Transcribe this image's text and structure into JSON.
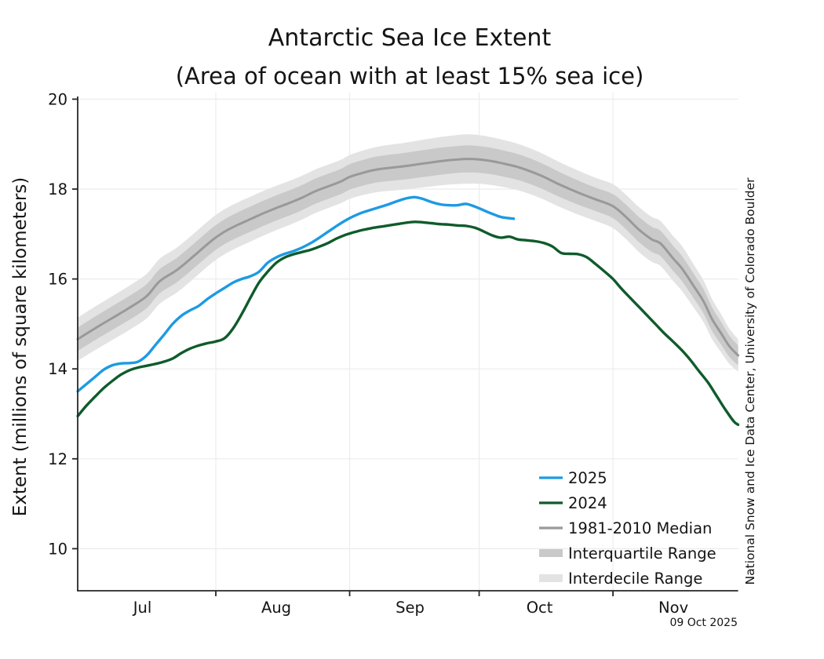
{
  "header": {
    "title": "Antarctic Sea Ice Extent",
    "subtitle": "(Area of ocean with at least 15% sea ice)"
  },
  "axes": {
    "y_label": "Extent (millions of square kilometers)",
    "y_ticks": [
      "20",
      "18",
      "16",
      "14",
      "12",
      "10"
    ],
    "month_labels": [
      "Jul",
      "Aug",
      "Sep",
      "Oct",
      "Nov"
    ]
  },
  "annotations": {
    "credit": "National Snow and Ice Data Center, University of Colorado Boulder",
    "date_stamp": "09 Oct 2025"
  },
  "legend": {
    "items": [
      {
        "label": "2025",
        "kind": "line",
        "color": "#1D9AE3"
      },
      {
        "label": "2024",
        "kind": "line",
        "color": "#0F5B2B"
      },
      {
        "label": "1981-2010 Median",
        "kind": "line",
        "color": "#999999"
      },
      {
        "label": "Interquartile Range",
        "kind": "band",
        "color": "#C9C9C9"
      },
      {
        "label": "Interdecile Range",
        "kind": "band",
        "color": "#E3E3E3"
      }
    ]
  },
  "colors": {
    "line_2025": "#1D9AE3",
    "line_2024": "#0F5B2B",
    "median": "#999999",
    "interquartile": "#C9C9C9",
    "interdecile": "#E3E3E3",
    "gridline": "#ECECEC",
    "axis": "#262626"
  },
  "chart_data": {
    "type": "line",
    "title": "Antarctic Sea Ice Extent",
    "subtitle": "(Area of ocean with at least 15% sea ice)",
    "xlabel": "",
    "ylabel": "Extent (millions of square kilometers)",
    "x_unit": "days since Jun 30",
    "ylim": [
      9.0,
      20.1
    ],
    "xlim_days": [
      0,
      153
    ],
    "y_tick_values": [
      20,
      18,
      16,
      14,
      12,
      10
    ],
    "month_boundary_days": [
      32,
      63,
      93,
      124
    ],
    "month_label_days": [
      15,
      46,
      77,
      107,
      138
    ],
    "legend_position": "lower right inside plot",
    "grid": true,
    "series": [
      {
        "name": "2025",
        "points": [
          [
            0,
            13.5
          ],
          [
            2,
            13.66
          ],
          [
            4,
            13.82
          ],
          [
            6,
            13.98
          ],
          [
            8,
            14.08
          ],
          [
            10,
            14.12
          ],
          [
            12,
            14.13
          ],
          [
            14,
            14.16
          ],
          [
            16,
            14.3
          ],
          [
            18,
            14.53
          ],
          [
            20,
            14.76
          ],
          [
            22,
            15.0
          ],
          [
            24,
            15.18
          ],
          [
            26,
            15.3
          ],
          [
            28,
            15.4
          ],
          [
            30,
            15.55
          ],
          [
            32,
            15.68
          ],
          [
            34,
            15.8
          ],
          [
            36,
            15.92
          ],
          [
            38,
            16.0
          ],
          [
            40,
            16.06
          ],
          [
            42,
            16.16
          ],
          [
            44,
            16.36
          ],
          [
            46,
            16.48
          ],
          [
            48,
            16.56
          ],
          [
            50,
            16.62
          ],
          [
            52,
            16.7
          ],
          [
            54,
            16.8
          ],
          [
            56,
            16.92
          ],
          [
            58,
            17.05
          ],
          [
            60,
            17.18
          ],
          [
            62,
            17.3
          ],
          [
            64,
            17.4
          ],
          [
            66,
            17.48
          ],
          [
            68,
            17.54
          ],
          [
            70,
            17.6
          ],
          [
            72,
            17.66
          ],
          [
            74,
            17.73
          ],
          [
            76,
            17.79
          ],
          [
            78,
            17.82
          ],
          [
            80,
            17.78
          ],
          [
            82,
            17.71
          ],
          [
            84,
            17.66
          ],
          [
            86,
            17.64
          ],
          [
            88,
            17.64
          ],
          [
            90,
            17.67
          ],
          [
            92,
            17.61
          ],
          [
            94,
            17.53
          ],
          [
            96,
            17.45
          ],
          [
            98,
            17.38
          ],
          [
            100,
            17.35
          ],
          [
            101,
            17.34
          ]
        ]
      },
      {
        "name": "2024",
        "points": [
          [
            0,
            12.95
          ],
          [
            2,
            13.18
          ],
          [
            4,
            13.38
          ],
          [
            6,
            13.57
          ],
          [
            8,
            13.73
          ],
          [
            10,
            13.87
          ],
          [
            12,
            13.97
          ],
          [
            14,
            14.03
          ],
          [
            16,
            14.07
          ],
          [
            18,
            14.11
          ],
          [
            20,
            14.16
          ],
          [
            22,
            14.23
          ],
          [
            24,
            14.35
          ],
          [
            26,
            14.45
          ],
          [
            28,
            14.52
          ],
          [
            30,
            14.57
          ],
          [
            32,
            14.61
          ],
          [
            34,
            14.68
          ],
          [
            36,
            14.9
          ],
          [
            38,
            15.22
          ],
          [
            40,
            15.58
          ],
          [
            42,
            15.92
          ],
          [
            44,
            16.16
          ],
          [
            46,
            16.36
          ],
          [
            48,
            16.48
          ],
          [
            50,
            16.55
          ],
          [
            52,
            16.6
          ],
          [
            54,
            16.65
          ],
          [
            56,
            16.72
          ],
          [
            58,
            16.8
          ],
          [
            60,
            16.9
          ],
          [
            62,
            16.98
          ],
          [
            64,
            17.04
          ],
          [
            66,
            17.09
          ],
          [
            68,
            17.13
          ],
          [
            70,
            17.16
          ],
          [
            72,
            17.19
          ],
          [
            74,
            17.22
          ],
          [
            76,
            17.25
          ],
          [
            78,
            17.27
          ],
          [
            80,
            17.26
          ],
          [
            82,
            17.24
          ],
          [
            84,
            17.22
          ],
          [
            86,
            17.21
          ],
          [
            88,
            17.19
          ],
          [
            90,
            17.18
          ],
          [
            92,
            17.14
          ],
          [
            94,
            17.06
          ],
          [
            96,
            16.97
          ],
          [
            98,
            16.92
          ],
          [
            100,
            16.94
          ],
          [
            102,
            16.88
          ],
          [
            104,
            16.86
          ],
          [
            106,
            16.84
          ],
          [
            108,
            16.8
          ],
          [
            110,
            16.72
          ],
          [
            112,
            16.58
          ],
          [
            114,
            16.56
          ],
          [
            116,
            16.55
          ],
          [
            118,
            16.48
          ],
          [
            120,
            16.33
          ],
          [
            122,
            16.17
          ],
          [
            124,
            16.0
          ],
          [
            126,
            15.78
          ],
          [
            128,
            15.58
          ],
          [
            130,
            15.38
          ],
          [
            132,
            15.18
          ],
          [
            134,
            14.98
          ],
          [
            136,
            14.78
          ],
          [
            138,
            14.6
          ],
          [
            140,
            14.41
          ],
          [
            142,
            14.19
          ],
          [
            144,
            13.94
          ],
          [
            146,
            13.7
          ],
          [
            148,
            13.4
          ],
          [
            150,
            13.1
          ],
          [
            152,
            12.83
          ],
          [
            153,
            12.76
          ]
        ]
      },
      {
        "name": "1981-2010 Median",
        "points": [
          [
            0,
            14.66
          ],
          [
            4,
            14.9
          ],
          [
            8,
            15.13
          ],
          [
            12,
            15.36
          ],
          [
            16,
            15.62
          ],
          [
            19,
            15.95
          ],
          [
            23,
            16.2
          ],
          [
            27,
            16.52
          ],
          [
            31,
            16.85
          ],
          [
            34,
            17.05
          ],
          [
            37,
            17.2
          ],
          [
            40,
            17.33
          ],
          [
            43,
            17.46
          ],
          [
            46,
            17.58
          ],
          [
            49,
            17.69
          ],
          [
            52,
            17.81
          ],
          [
            55,
            17.95
          ],
          [
            58,
            18.06
          ],
          [
            61,
            18.17
          ],
          [
            63,
            18.27
          ],
          [
            66,
            18.36
          ],
          [
            69,
            18.43
          ],
          [
            72,
            18.47
          ],
          [
            75,
            18.5
          ],
          [
            78,
            18.54
          ],
          [
            81,
            18.58
          ],
          [
            84,
            18.62
          ],
          [
            87,
            18.65
          ],
          [
            90,
            18.67
          ],
          [
            93,
            18.66
          ],
          [
            96,
            18.62
          ],
          [
            99,
            18.56
          ],
          [
            102,
            18.49
          ],
          [
            105,
            18.39
          ],
          [
            108,
            18.27
          ],
          [
            111,
            18.13
          ],
          [
            114,
            18.0
          ],
          [
            117,
            17.88
          ],
          [
            120,
            17.77
          ],
          [
            124,
            17.62
          ],
          [
            127,
            17.38
          ],
          [
            130,
            17.1
          ],
          [
            133,
            16.88
          ],
          [
            135,
            16.79
          ],
          [
            138,
            16.45
          ],
          [
            140,
            16.23
          ],
          [
            143,
            15.8
          ],
          [
            145,
            15.5
          ],
          [
            147,
            15.1
          ],
          [
            149,
            14.8
          ],
          [
            151,
            14.5
          ],
          [
            153,
            14.3
          ]
        ]
      }
    ],
    "bands": {
      "interquartile_halfwidth": [
        [
          0,
          0.26
        ],
        [
          20,
          0.27
        ],
        [
          40,
          0.28
        ],
        [
          60,
          0.28
        ],
        [
          80,
          0.3
        ],
        [
          90,
          0.3
        ],
        [
          100,
          0.29
        ],
        [
          110,
          0.28
        ],
        [
          120,
          0.26
        ],
        [
          130,
          0.28
        ],
        [
          140,
          0.28
        ],
        [
          148,
          0.26
        ],
        [
          153,
          0.22
        ]
      ],
      "interdecile_halfwidth": [
        [
          0,
          0.48
        ],
        [
          20,
          0.5
        ],
        [
          40,
          0.5
        ],
        [
          60,
          0.48
        ],
        [
          80,
          0.53
        ],
        [
          90,
          0.55
        ],
        [
          100,
          0.52
        ],
        [
          110,
          0.5
        ],
        [
          120,
          0.48
        ],
        [
          130,
          0.5
        ],
        [
          140,
          0.5
        ],
        [
          148,
          0.44
        ],
        [
          153,
          0.36
        ]
      ]
    }
  }
}
